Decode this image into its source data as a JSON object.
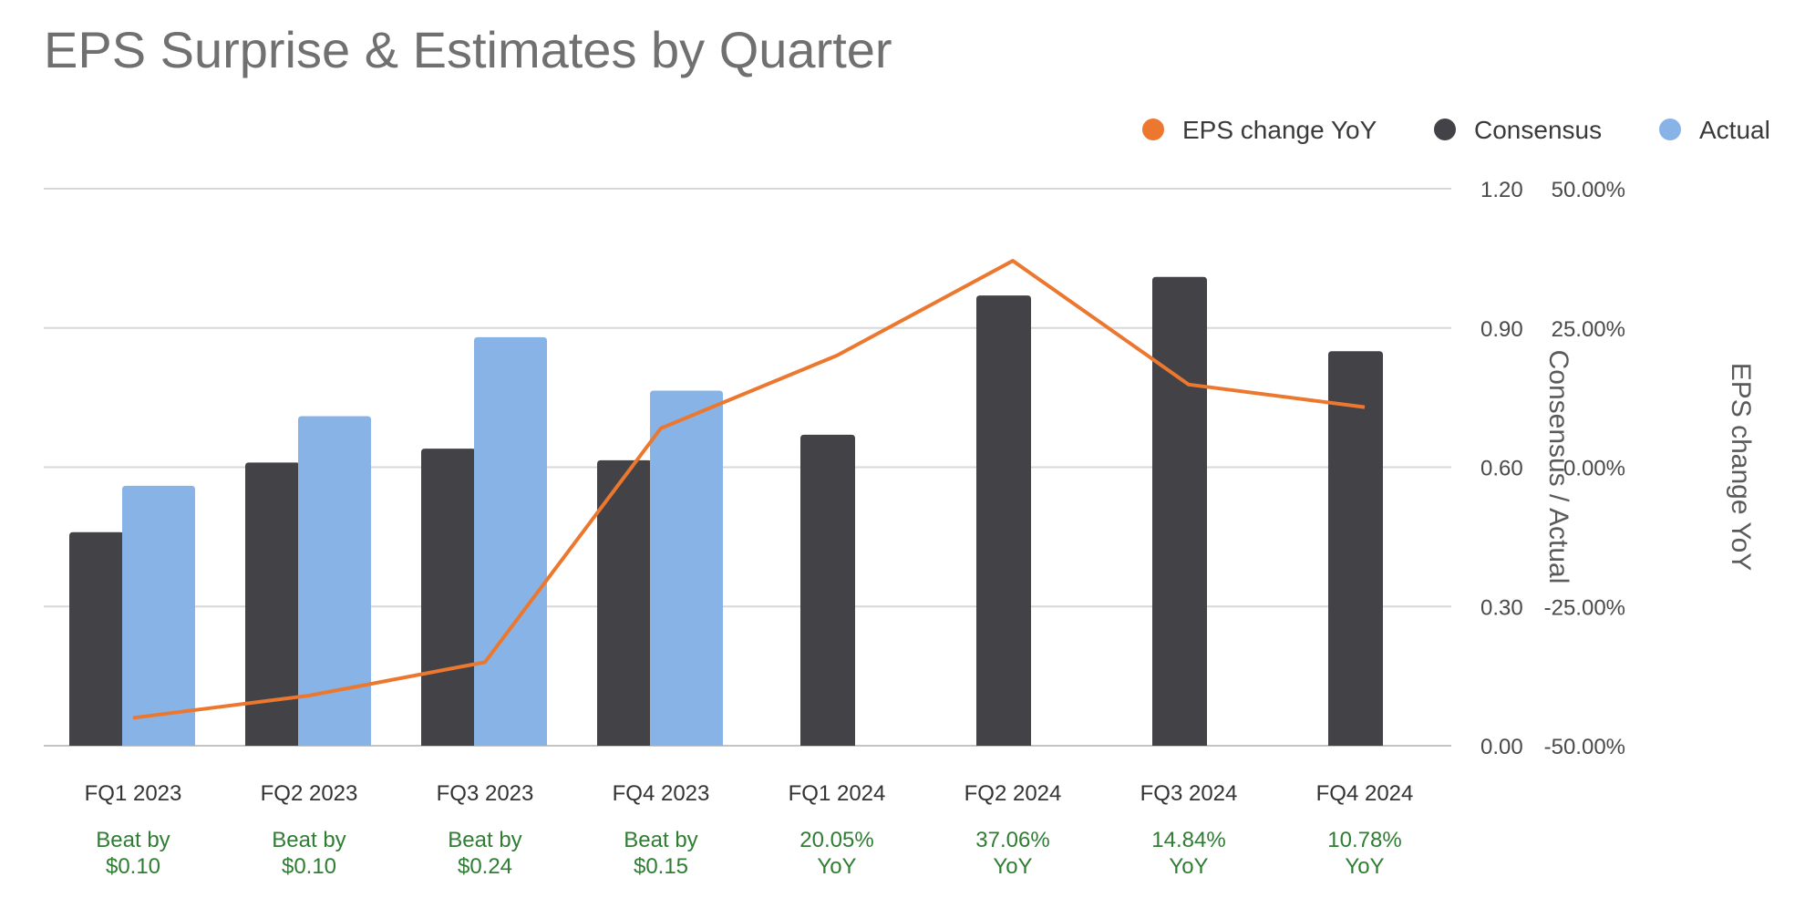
{
  "title": "EPS Surprise & Estimates by Quarter",
  "colors": {
    "consensus": "#434247",
    "actual": "#88b3e6",
    "yoy_line": "#ec7830",
    "grid": "#d8d8d8",
    "note": "#2e7d32"
  },
  "legend": [
    {
      "label": "EPS change YoY",
      "color": "#ec7830"
    },
    {
      "label": "Consensus",
      "color": "#434247"
    },
    {
      "label": "Actual",
      "color": "#88b3e6"
    }
  ],
  "chart_data": {
    "type": "bar",
    "title": "EPS Surprise & Estimates by Quarter",
    "categories": [
      "FQ1 2023",
      "FQ2 2023",
      "FQ3 2023",
      "FQ4 2023",
      "FQ1 2024",
      "FQ2 2024",
      "FQ3 2024",
      "FQ4 2024"
    ],
    "series": [
      {
        "name": "Consensus",
        "type": "bar",
        "axis": "left",
        "values": [
          0.46,
          0.61,
          0.64,
          0.615,
          0.67,
          0.97,
          1.01,
          0.85
        ]
      },
      {
        "name": "Actual",
        "type": "bar",
        "axis": "left",
        "values": [
          0.56,
          0.71,
          0.88,
          0.765,
          null,
          null,
          null,
          null
        ]
      },
      {
        "name": "EPS change YoY",
        "type": "line",
        "axis": "right",
        "values": [
          -45.0,
          -41.0,
          -35.0,
          7.0,
          20.05,
          37.06,
          14.84,
          10.78
        ]
      }
    ],
    "y_left": {
      "label": "Consensus / Actual",
      "range": [
        0,
        1.2
      ],
      "ticks": [
        "0.00",
        "0.30",
        "0.60",
        "0.90",
        "1.20"
      ],
      "tick_values": [
        0,
        0.3,
        0.6,
        0.9,
        1.2
      ]
    },
    "y_right": {
      "label": "EPS change YoY",
      "range": [
        -50,
        50
      ],
      "ticks": [
        "-50.00%",
        "-25.00%",
        "0.00%",
        "25.00%",
        "50.00%"
      ],
      "tick_values": [
        -50,
        -25,
        0,
        25,
        50
      ]
    },
    "notes": [
      [
        "Beat by",
        "$0.10"
      ],
      [
        "Beat by",
        "$0.10"
      ],
      [
        "Beat by",
        "$0.24"
      ],
      [
        "Beat by",
        "$0.15"
      ],
      [
        "20.05%",
        "YoY"
      ],
      [
        "37.06%",
        "YoY"
      ],
      [
        "14.84%",
        "YoY"
      ],
      [
        "10.78%",
        "YoY"
      ]
    ],
    "grid": true,
    "legend_position": "top-right"
  }
}
